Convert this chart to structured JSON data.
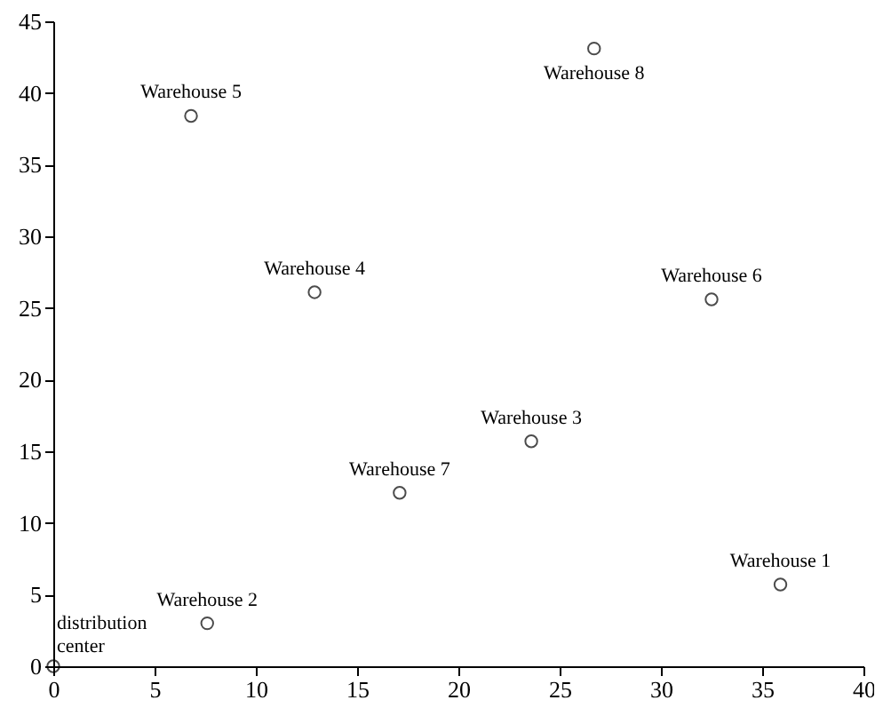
{
  "chart_data": {
    "type": "scatter",
    "x": [
      0,
      7.6,
      17.1,
      23.6,
      35.9,
      32.5,
      12.9,
      6.8,
      26.7
    ],
    "values": [
      0,
      3.0,
      12.1,
      15.7,
      5.7,
      25.6,
      26.1,
      38.4,
      43.1
    ],
    "color": "#000000",
    "marker": "circle",
    "grid": false,
    "xlim": [
      0,
      40
    ],
    "ylim": [
      0,
      45
    ],
    "xticks": [
      0,
      5,
      10,
      15,
      20,
      25,
      30,
      35,
      40
    ],
    "yticks": [
      0,
      5,
      10,
      15,
      20,
      25,
      30,
      35,
      40,
      45
    ],
    "annotations": [
      {
        "text": "distribution\ncenter",
        "x": 0,
        "y": 0
      },
      {
        "text": "Warehouse 2",
        "x": 7.6,
        "y": 3.0
      },
      {
        "text": "Warehouse 7",
        "x": 17.1,
        "y": 12.1
      },
      {
        "text": "Warehouse 3",
        "x": 23.6,
        "y": 15.7
      },
      {
        "text": "Warehouse 1",
        "x": 35.9,
        "y": 5.7
      },
      {
        "text": "Warehouse 6",
        "x": 32.5,
        "y": 25.6
      },
      {
        "text": "Warehouse 4",
        "x": 12.9,
        "y": 26.1
      },
      {
        "text": "Warehouse 5",
        "x": 6.8,
        "y": 38.4
      },
      {
        "text": "Warehouse 8",
        "x": 26.7,
        "y": 43.1
      }
    ]
  }
}
